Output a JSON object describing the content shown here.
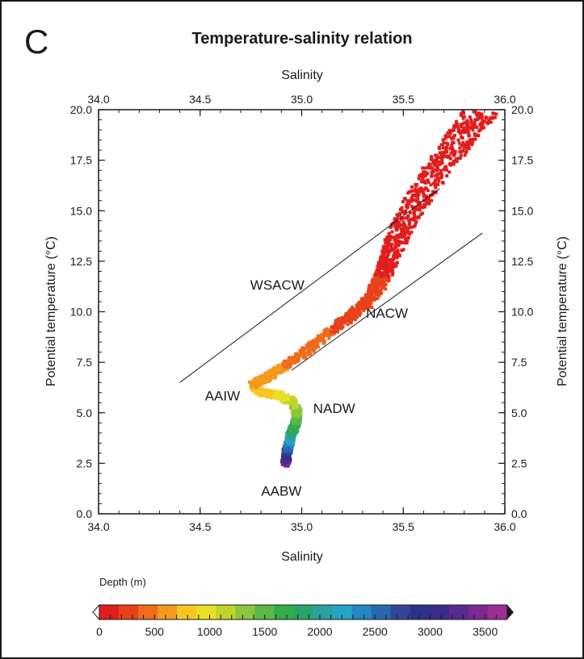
{
  "panel_letter": "C",
  "chart_data": {
    "type": "scatter",
    "title": "Temperature-salinity relation",
    "x_label_top": "Salinity",
    "x_label_bottom": "Salinity",
    "y_label_left": "Potential temperature (°C)",
    "y_label_right": "Potential temperature (°C)",
    "xlim": [
      34.0,
      36.0
    ],
    "ylim": [
      0.0,
      20.0
    ],
    "x_ticks": [
      "34.0",
      "34.5",
      "35.0",
      "35.5",
      "36.0"
    ],
    "y_ticks": [
      "0.0",
      "2.5",
      "5.0",
      "7.5",
      "10.0",
      "12.5",
      "15.0",
      "17.5",
      "20.0"
    ],
    "x_tick_values": [
      34.0,
      34.5,
      35.0,
      35.5,
      36.0
    ],
    "y_tick_values": [
      0.0,
      2.5,
      5.0,
      7.5,
      10.0,
      12.5,
      15.0,
      17.5,
      20.0
    ],
    "grid": false,
    "water_masses": [
      {
        "label": "WSACW",
        "salinity": 34.88,
        "temperature": 11.1
      },
      {
        "label": "NACW",
        "salinity": 35.42,
        "temperature": 9.7
      },
      {
        "label": "AAIW",
        "salinity": 34.61,
        "temperature": 5.6
      },
      {
        "label": "NADW",
        "salinity": 35.16,
        "temperature": 5.0
      },
      {
        "label": "AABW",
        "salinity": 34.9,
        "temperature": 0.9
      }
    ],
    "reference_lines": [
      {
        "name": "WSACW",
        "from": [
          34.4,
          6.5
        ],
        "to": [
          35.68,
          16.1
        ]
      },
      {
        "name": "NACW",
        "from": [
          34.95,
          7.1
        ],
        "to": [
          35.89,
          13.9
        ]
      }
    ],
    "trace_points": [
      {
        "salinity": 34.92,
        "temperature": 2.45,
        "depth": 3500
      },
      {
        "salinity": 34.925,
        "temperature": 2.8,
        "depth": 3200
      },
      {
        "salinity": 34.93,
        "temperature": 3.2,
        "depth": 2700
      },
      {
        "salinity": 34.94,
        "temperature": 3.6,
        "depth": 2300
      },
      {
        "salinity": 34.95,
        "temperature": 4.0,
        "depth": 1950
      },
      {
        "salinity": 34.97,
        "temperature": 4.4,
        "depth": 1650
      },
      {
        "salinity": 34.98,
        "temperature": 5.0,
        "depth": 1400
      },
      {
        "salinity": 34.95,
        "temperature": 5.6,
        "depth": 1150
      },
      {
        "salinity": 34.88,
        "temperature": 5.9,
        "depth": 950
      },
      {
        "salinity": 34.8,
        "temperature": 6.0,
        "depth": 800
      },
      {
        "salinity": 34.76,
        "temperature": 6.4,
        "depth": 700
      },
      {
        "salinity": 34.82,
        "temperature": 6.7,
        "depth": 650
      },
      {
        "salinity": 34.9,
        "temperature": 7.2,
        "depth": 550
      },
      {
        "salinity": 35.0,
        "temperature": 7.9,
        "depth": 450
      },
      {
        "salinity": 35.1,
        "temperature": 8.7,
        "depth": 380
      },
      {
        "salinity": 35.22,
        "temperature": 9.6,
        "depth": 320
      },
      {
        "salinity": 35.32,
        "temperature": 10.4,
        "depth": 260
      },
      {
        "salinity": 35.38,
        "temperature": 11.4,
        "depth": 200
      },
      {
        "salinity": 35.42,
        "temperature": 12.3,
        "depth": 150
      },
      {
        "salinity": 35.46,
        "temperature": 13.4,
        "depth": 100
      },
      {
        "salinity": 35.52,
        "temperature": 14.7,
        "depth": 70
      },
      {
        "salinity": 35.6,
        "temperature": 16.0,
        "depth": 40
      },
      {
        "salinity": 35.7,
        "temperature": 17.5,
        "depth": 20
      },
      {
        "salinity": 35.8,
        "temperature": 18.8,
        "depth": 10
      },
      {
        "salinity": 35.88,
        "temperature": 19.8,
        "depth": 0
      }
    ],
    "colorbar": {
      "title": "Depth (m)",
      "min": 0,
      "max": 3700,
      "ticks": [
        "0",
        "500",
        "1000",
        "1500",
        "2000",
        "2500",
        "3000",
        "3500"
      ],
      "tick_values": [
        0,
        500,
        1000,
        1500,
        2000,
        2500,
        3000,
        3500
      ],
      "colors": [
        "#e11d1d",
        "#e8421a",
        "#ee6c1c",
        "#f39a1e",
        "#f6c623",
        "#eadf27",
        "#bfd52b",
        "#8cc63e",
        "#5cb946",
        "#35ac4a",
        "#2aa46a",
        "#2aa29a",
        "#27a3c9",
        "#2387c6",
        "#2a68ae",
        "#30469a",
        "#2e3389",
        "#3a2c8a",
        "#5a2b8f",
        "#7a2a92",
        "#9b2f95"
      ]
    }
  }
}
